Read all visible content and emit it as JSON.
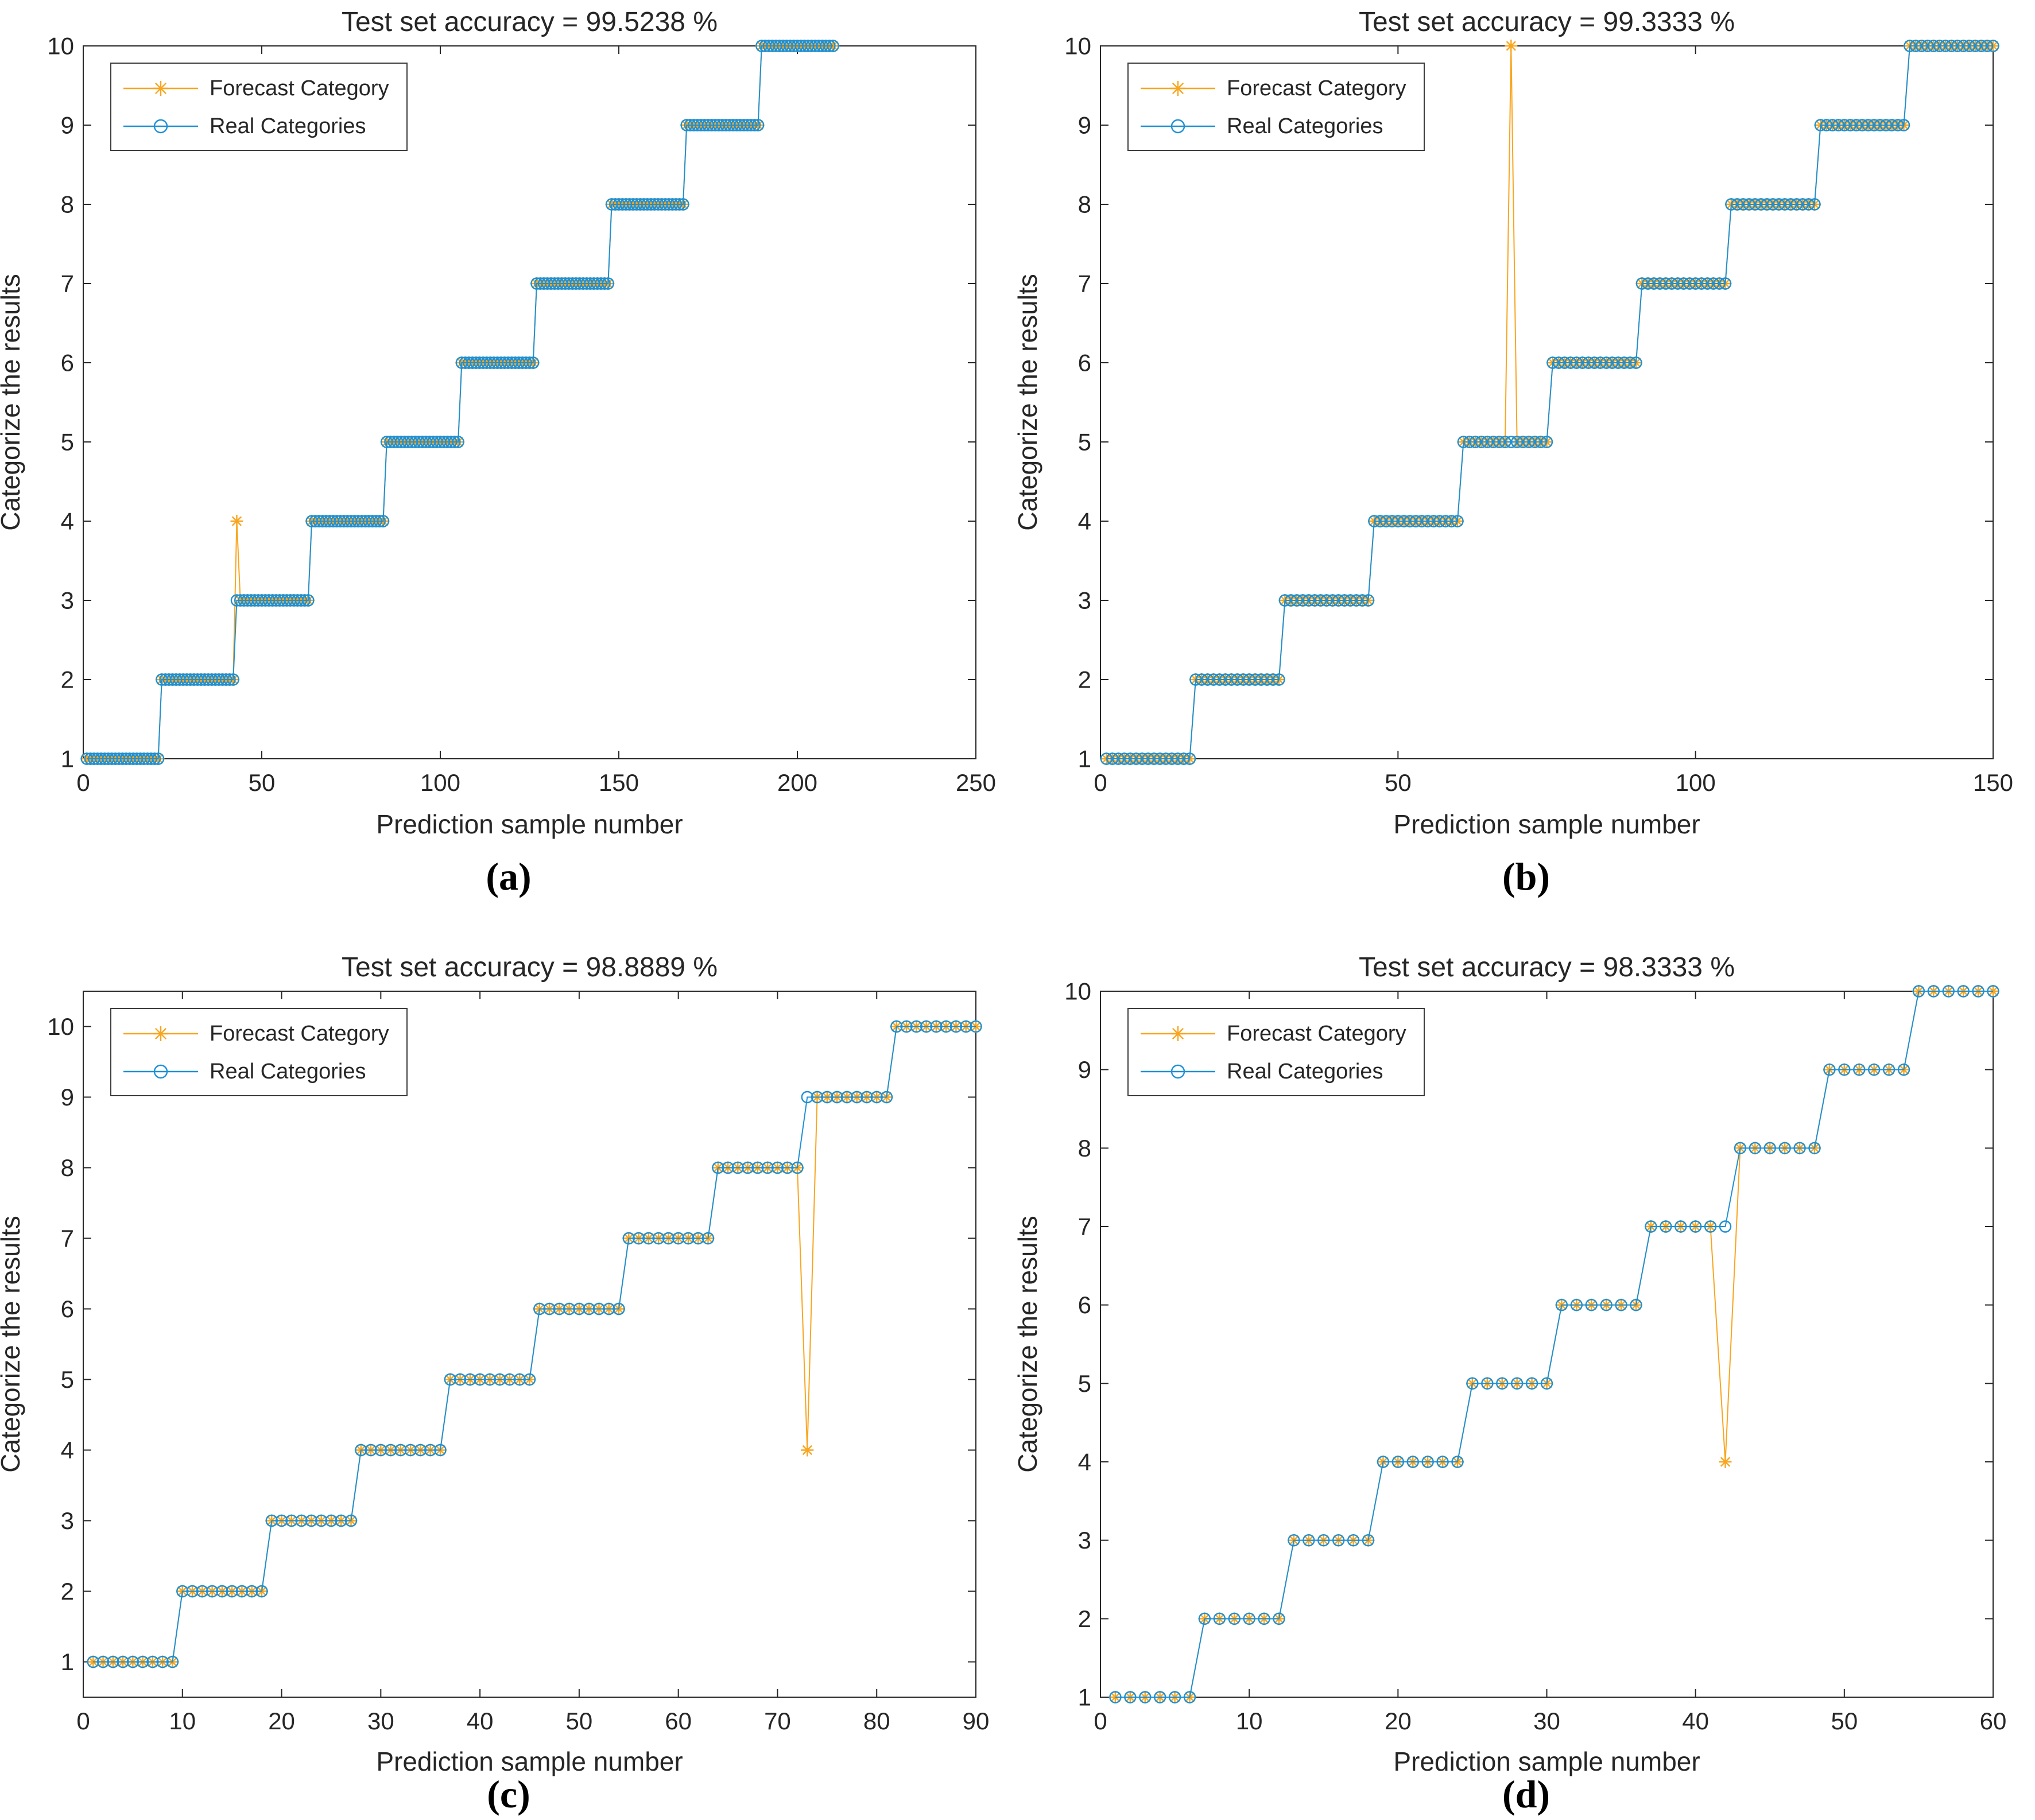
{
  "figure": {
    "description": "Four MATLAB-style classification result plots comparing forecast category vs real category per prediction sample",
    "colors": {
      "forecast_series": "#F9A51F",
      "real_series": "#1E90D4",
      "axis": "#262626",
      "text": "#262626",
      "legend_border": "#3c3c3c",
      "background": "#ffffff",
      "caption_text": "#000000"
    },
    "legend": {
      "position": "northwest",
      "entries": [
        {
          "label": "Forecast Category",
          "marker": "asterisk-marker",
          "color_role": "forecast_series"
        },
        {
          "label": "Real Categories",
          "marker": "circle-marker",
          "color_role": "real_series"
        }
      ]
    },
    "axis_labels": {
      "x": "Prediction sample number",
      "y": "Categorize the results"
    },
    "series_rule": "real[i] = ceil(i / samples_per_category) for i = 1..n_samples; forecast[i] = real[i] for every sample except the listed errors"
  },
  "chart_data": [
    {
      "type": "line",
      "caption": "(a)",
      "title": "Test set accuracy = 99.5238 %",
      "accuracy_pct": "99.5238",
      "n_samples": 210,
      "samples_per_category": 21,
      "num_categories": 10,
      "xlim": [
        0,
        250
      ],
      "xticks": [
        0,
        50,
        100,
        150,
        200,
        250
      ],
      "ylim": [
        1,
        10
      ],
      "yticks": [
        1,
        2,
        3,
        4,
        5,
        6,
        7,
        8,
        9,
        10
      ],
      "grid": false,
      "errors": [
        {
          "sample": 43,
          "real": 3,
          "forecast": 4
        }
      ]
    },
    {
      "type": "line",
      "caption": "(b)",
      "title": "Test set accuracy = 99.3333 %",
      "accuracy_pct": "99.3333",
      "n_samples": 150,
      "samples_per_category": 15,
      "num_categories": 10,
      "xlim": [
        0,
        150
      ],
      "xticks": [
        0,
        50,
        100,
        150
      ],
      "ylim": [
        1,
        10
      ],
      "yticks": [
        1,
        2,
        3,
        4,
        5,
        6,
        7,
        8,
        9,
        10
      ],
      "grid": false,
      "errors": [
        {
          "sample": 69,
          "real": 5,
          "forecast": 10
        }
      ]
    },
    {
      "type": "line",
      "caption": "(c)",
      "title": "Test set accuracy = 98.8889 %",
      "accuracy_pct": "98.8889",
      "n_samples": 90,
      "samples_per_category": 9,
      "num_categories": 10,
      "xlim": [
        0,
        90
      ],
      "xticks": [
        0,
        10,
        20,
        30,
        40,
        50,
        60,
        70,
        80,
        90
      ],
      "ylim": [
        0.5,
        10.5
      ],
      "yticks": [
        1,
        2,
        3,
        4,
        5,
        6,
        7,
        8,
        9,
        10
      ],
      "grid": false,
      "errors": [
        {
          "sample": 73,
          "real": 9,
          "forecast": 4
        }
      ]
    },
    {
      "type": "line",
      "caption": "(d)",
      "title": "Test set accuracy = 98.3333 %",
      "accuracy_pct": "98.3333",
      "n_samples": 60,
      "samples_per_category": 6,
      "num_categories": 10,
      "xlim": [
        0,
        60
      ],
      "xticks": [
        0,
        10,
        20,
        30,
        40,
        50,
        60
      ],
      "ylim": [
        1,
        10
      ],
      "yticks": [
        1,
        2,
        3,
        4,
        5,
        6,
        7,
        8,
        9,
        10
      ],
      "grid": false,
      "errors": [
        {
          "sample": 42,
          "real": 7,
          "forecast": 4
        }
      ]
    }
  ]
}
